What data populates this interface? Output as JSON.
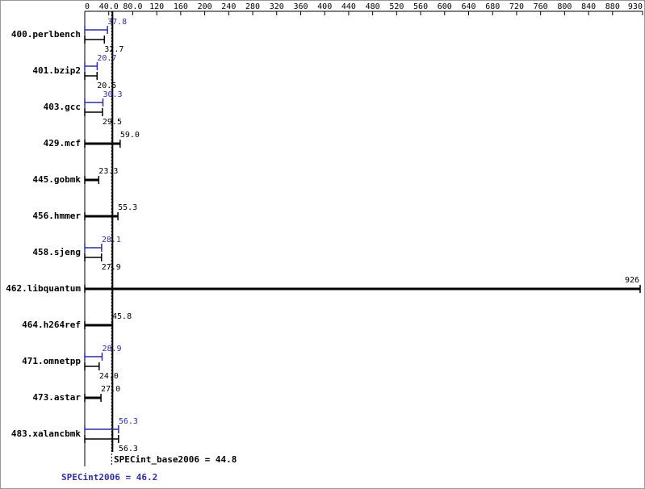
{
  "chart_data": {
    "type": "hbar",
    "categories": [
      "400.perlbench",
      "401.bzip2",
      "403.gcc",
      "429.mcf",
      "445.gobmk",
      "456.hmmer",
      "458.sjeng",
      "462.libquantum",
      "464.h264ref",
      "471.omnetpp",
      "473.astar",
      "483.xalancbmk"
    ],
    "series": [
      {
        "color": "#2f2f9f",
        "values": [
          37.8,
          20.7,
          30.3,
          null,
          null,
          null,
          28.1,
          null,
          null,
          28.9,
          null,
          56.3
        ],
        "value_labels": [
          "37.8",
          "20.7",
          "30.3",
          null,
          null,
          null,
          "28.1",
          null,
          null,
          "28.9",
          null,
          "56.3"
        ]
      },
      {
        "color": "#000000",
        "values": [
          32.7,
          20.5,
          29.5,
          59.0,
          23.3,
          55.3,
          27.9,
          926,
          45.8,
          24.0,
          27.0,
          56.3
        ],
        "value_labels": [
          "32.7",
          "20.5",
          "29.5",
          "59.0",
          "23.3",
          "55.3",
          "27.9",
          "926",
          "45.8",
          "24.0",
          "27.0",
          "56.3"
        ]
      }
    ],
    "xlim": [
      0,
      926
    ],
    "xticks": [
      0,
      {
        "value": 40,
        "label": "40.0"
      },
      {
        "value": 80,
        "label": "80.0"
      },
      120,
      160,
      200,
      240,
      280,
      320,
      360,
      400,
      440,
      480,
      520,
      560,
      600,
      640,
      680,
      720,
      760,
      800,
      840,
      880,
      930
    ],
    "base_mean": 44.8,
    "base_mean_label": "SPECint_base2006 = 44.8",
    "peak_mean": 46.2,
    "peak_mean_label": "SPECint2006 = 46.2"
  }
}
